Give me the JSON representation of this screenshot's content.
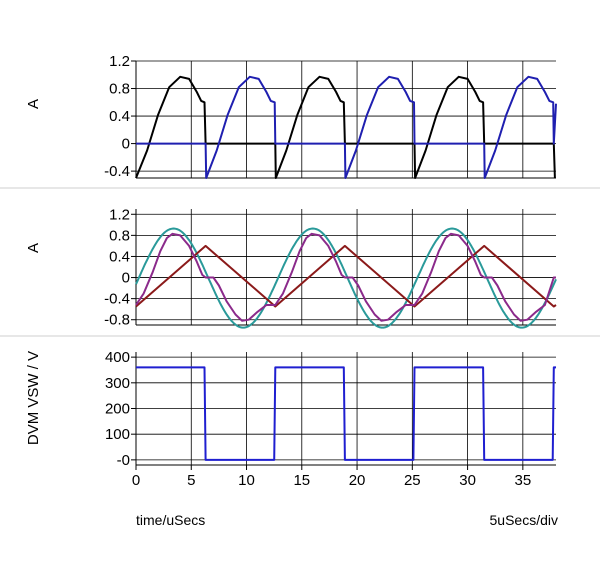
{
  "chart_data": [
    {
      "type": "line",
      "ylabel": "A",
      "ylim": [
        -0.5,
        1.2
      ],
      "yticks": [
        1.2,
        0.8,
        0.4,
        0,
        -0.4
      ],
      "ytick_labels": [
        "1.2",
        "0.8",
        "0.4",
        "0",
        "-0.4"
      ],
      "xlim": [
        0,
        38
      ],
      "series": [
        {
          "color": "#000000",
          "points": [
            [
              0,
              -0.5
            ],
            [
              1,
              -0.1
            ],
            [
              2,
              0.42
            ],
            [
              3,
              0.82
            ],
            [
              4,
              0.97
            ],
            [
              4.8,
              0.94
            ],
            [
              5.5,
              0.75
            ],
            [
              5.9,
              0.62
            ],
            [
              6.2,
              0.6
            ],
            [
              6.3,
              0.0
            ],
            [
              8,
              0.0
            ],
            [
              12.6,
              0.0
            ],
            [
              12.65,
              -0.5
            ],
            [
              13.6,
              -0.1
            ],
            [
              14.6,
              0.42
            ],
            [
              15.6,
              0.82
            ],
            [
              16.6,
              0.97
            ],
            [
              17.4,
              0.94
            ],
            [
              18.1,
              0.75
            ],
            [
              18.5,
              0.62
            ],
            [
              18.8,
              0.6
            ],
            [
              18.9,
              0.0
            ],
            [
              25.2,
              0.0
            ],
            [
              25.25,
              -0.5
            ],
            [
              26.2,
              -0.1
            ],
            [
              27.2,
              0.42
            ],
            [
              28.2,
              0.82
            ],
            [
              29.2,
              0.97
            ],
            [
              30,
              0.94
            ],
            [
              30.7,
              0.75
            ],
            [
              31.1,
              0.62
            ],
            [
              31.4,
              0.6
            ],
            [
              31.5,
              0.0
            ],
            [
              37.8,
              0.0
            ],
            [
              37.9,
              -0.5
            ]
          ]
        },
        {
          "color": "#1f1fb0",
          "points": [
            [
              0,
              0.0
            ],
            [
              6.3,
              0.0
            ],
            [
              6.35,
              -0.5
            ],
            [
              7.3,
              -0.1
            ],
            [
              8.3,
              0.42
            ],
            [
              9.3,
              0.82
            ],
            [
              10.3,
              0.97
            ],
            [
              11.1,
              0.94
            ],
            [
              11.8,
              0.75
            ],
            [
              12.2,
              0.62
            ],
            [
              12.55,
              0.6
            ],
            [
              12.6,
              0.0
            ],
            [
              18.9,
              0.0
            ],
            [
              18.95,
              -0.5
            ],
            [
              19.9,
              -0.1
            ],
            [
              20.9,
              0.42
            ],
            [
              21.9,
              0.82
            ],
            [
              22.9,
              0.97
            ],
            [
              23.7,
              0.94
            ],
            [
              24.4,
              0.75
            ],
            [
              24.8,
              0.62
            ],
            [
              25.15,
              0.6
            ],
            [
              25.2,
              0.0
            ],
            [
              31.5,
              0.0
            ],
            [
              31.55,
              -0.5
            ],
            [
              32.5,
              -0.1
            ],
            [
              33.5,
              0.42
            ],
            [
              34.5,
              0.82
            ],
            [
              35.5,
              0.97
            ],
            [
              36.3,
              0.94
            ],
            [
              37,
              0.75
            ],
            [
              37.4,
              0.62
            ],
            [
              37.75,
              0.6
            ],
            [
              37.8,
              0.0
            ],
            [
              38,
              0.58
            ]
          ]
        }
      ]
    },
    {
      "type": "line",
      "ylabel": "A",
      "ylim": [
        -0.9,
        1.3
      ],
      "yticks": [
        1.2,
        0.8,
        0.4,
        0,
        -0.4,
        -0.8
      ],
      "ytick_labels": [
        "1.2",
        "0.8",
        "0.4",
        "0",
        "-0.4",
        "-0.8"
      ],
      "xlim": [
        0,
        38
      ],
      "series": [
        {
          "color": "#2a9a9a",
          "shape": "sine",
          "offset": -0.01,
          "amplitude": 0.94,
          "period": 12.6,
          "phase": 3.4,
          "t_start": 0,
          "t_end": 38
        },
        {
          "color": "#8b1a1a",
          "points": [
            [
              0,
              -0.55
            ],
            [
              6.3,
              0.6
            ],
            [
              12.6,
              -0.55
            ],
            [
              18.9,
              0.6
            ],
            [
              25.2,
              -0.55
            ],
            [
              31.5,
              0.6
            ],
            [
              37.8,
              -0.55
            ],
            [
              38,
              -0.52
            ]
          ]
        },
        {
          "color": "#8b2a8b",
          "points": [
            [
              0,
              -0.52
            ],
            [
              0.7,
              -0.3
            ],
            [
              1.5,
              0.1
            ],
            [
              2.2,
              0.5
            ],
            [
              2.8,
              0.75
            ],
            [
              3.3,
              0.83
            ],
            [
              4,
              0.8
            ],
            [
              4.8,
              0.6
            ],
            [
              5.5,
              0.3
            ],
            [
              6,
              0.05
            ],
            [
              6.3,
              0.0
            ],
            [
              7,
              0.0
            ],
            [
              7.5,
              -0.15
            ],
            [
              8.2,
              -0.45
            ],
            [
              9,
              -0.7
            ],
            [
              9.6,
              -0.82
            ],
            [
              10.2,
              -0.8
            ],
            [
              11,
              -0.65
            ],
            [
              11.8,
              -0.52
            ],
            [
              12.6,
              -0.52
            ],
            [
              13.3,
              -0.3
            ],
            [
              14.1,
              0.1
            ],
            [
              14.8,
              0.5
            ],
            [
              15.4,
              0.75
            ],
            [
              15.9,
              0.83
            ],
            [
              16.6,
              0.8
            ],
            [
              17.4,
              0.6
            ],
            [
              18.1,
              0.3
            ],
            [
              18.6,
              0.05
            ],
            [
              18.9,
              0.0
            ],
            [
              19.6,
              0.0
            ],
            [
              20.1,
              -0.15
            ],
            [
              20.8,
              -0.45
            ],
            [
              21.6,
              -0.7
            ],
            [
              22.2,
              -0.82
            ],
            [
              22.8,
              -0.8
            ],
            [
              23.6,
              -0.65
            ],
            [
              24.4,
              -0.52
            ],
            [
              25.2,
              -0.52
            ],
            [
              25.9,
              -0.3
            ],
            [
              26.7,
              0.1
            ],
            [
              27.4,
              0.5
            ],
            [
              28,
              0.75
            ],
            [
              28.5,
              0.83
            ],
            [
              29.2,
              0.8
            ],
            [
              30,
              0.6
            ],
            [
              30.7,
              0.3
            ],
            [
              31.2,
              0.05
            ],
            [
              31.5,
              0.0
            ],
            [
              32.2,
              0.0
            ],
            [
              32.7,
              -0.15
            ],
            [
              33.4,
              -0.45
            ],
            [
              34.2,
              -0.7
            ],
            [
              34.8,
              -0.82
            ],
            [
              35.4,
              -0.8
            ],
            [
              36.2,
              -0.65
            ],
            [
              37,
              -0.52
            ],
            [
              37.8,
              0.0
            ],
            [
              38,
              0.0
            ]
          ]
        }
      ]
    },
    {
      "type": "line",
      "ylabel": "DVM VSW / V",
      "ylim": [
        -20,
        420
      ],
      "yticks": [
        400,
        300,
        200,
        100,
        0
      ],
      "ytick_labels": [
        "400",
        "300",
        "200",
        "100",
        "-0"
      ],
      "xlim": [
        0,
        38
      ],
      "xticks": [
        0,
        5,
        10,
        15,
        20,
        25,
        30,
        35
      ],
      "xtick_labels": [
        "0",
        "5",
        "10",
        "15",
        "20",
        "25",
        "30",
        "35"
      ],
      "series": [
        {
          "color": "#1f1fd0",
          "points": [
            [
              0,
              360
            ],
            [
              6.2,
              360
            ],
            [
              6.3,
              0
            ],
            [
              12.5,
              0
            ],
            [
              12.6,
              360
            ],
            [
              18.8,
              360
            ],
            [
              18.9,
              0
            ],
            [
              25.1,
              0
            ],
            [
              25.2,
              360
            ],
            [
              31.4,
              360
            ],
            [
              31.5,
              0
            ],
            [
              37.7,
              0
            ],
            [
              37.8,
              360
            ],
            [
              38,
              360
            ]
          ]
        }
      ]
    }
  ],
  "footer": {
    "xlabel": "time/uSecs",
    "scale": "5uSecs/div"
  }
}
